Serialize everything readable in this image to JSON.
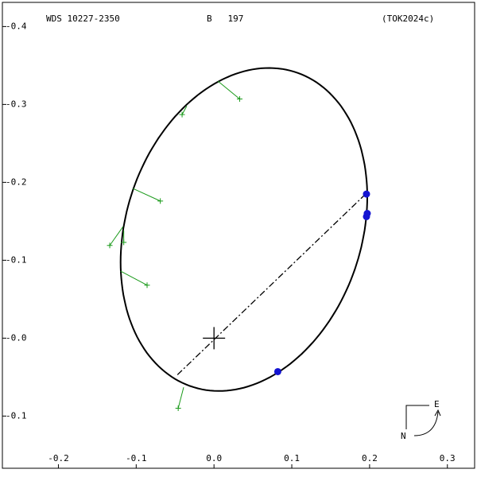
{
  "chart_data": {
    "type": "orbit",
    "title": "WDS 10227-2350",
    "subtitle": "B   197",
    "reference": "(TOK2024c)",
    "xlim": [
      -0.272,
      0.335
    ],
    "ylim": [
      -0.167,
      0.431
    ],
    "xticks": [
      -0.2,
      -0.1,
      {
        "value": 0,
        "label": "0.0"
      },
      0.1,
      0.2,
      0.3
    ],
    "yticks": [
      {
        "value": 0.4,
        "label": "-0.4"
      },
      {
        "value": 0.3,
        "label": "-0.3"
      },
      {
        "value": 0.2,
        "label": "-0.2"
      },
      {
        "value": 0.1,
        "label": "-0.1"
      },
      {
        "value": 0,
        "label": "-0.0"
      },
      -0.1
    ],
    "orbit": {
      "cx": 0.0385,
      "cy": 0.1395,
      "ax": 0.1585,
      "ay": 0.042,
      "by": 0.203,
      "color": "#000000"
    },
    "observations": {
      "color": "#1a9a1a",
      "x": [
        0.033,
        -0.041,
        -0.069,
        -0.134,
        -0.116,
        -0.086,
        -0.046
      ],
      "y": [
        0.307,
        0.287,
        0.176,
        0.119,
        0.123,
        0.068,
        -0.09
      ],
      "ex": [
        0.005,
        -0.035,
        -0.104,
        -0.117,
        -0.116,
        -0.12,
        -0.039
      ],
      "ey": [
        0.33,
        0.298,
        0.192,
        0.143,
        0.138,
        0.086,
        -0.063
      ]
    },
    "precise": {
      "color": "#1414d2",
      "x": [
        0.196,
        0.197,
        0.196,
        0.082
      ],
      "y": [
        0.185,
        0.16,
        0.156,
        -0.043
      ]
    },
    "node_line": {
      "x": [
        -0.047,
        0.196
      ],
      "y": [
        -0.047,
        0.186
      ]
    },
    "origin": [
      0,
      0
    ],
    "compass": {
      "east": "E",
      "north": "N"
    }
  }
}
